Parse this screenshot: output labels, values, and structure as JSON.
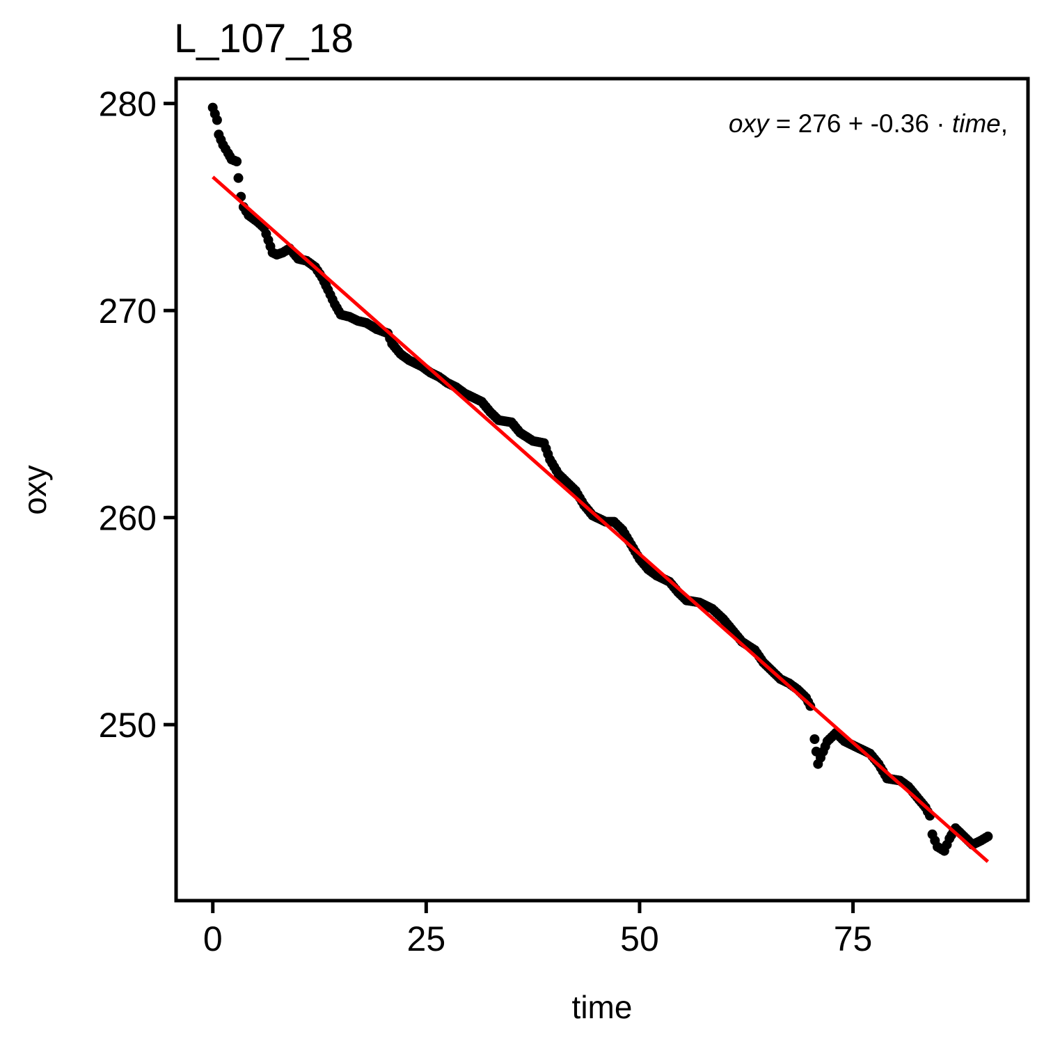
{
  "chart_data": {
    "type": "scatter",
    "title": "L_107_18",
    "xlabel": "time",
    "ylabel": "oxy",
    "xlim": [
      -4.3,
      95.5
    ],
    "ylim": [
      241.5,
      281.2
    ],
    "xticks": [
      0,
      25,
      50,
      75
    ],
    "yticks": [
      250,
      260,
      270,
      280
    ],
    "xtick_labels": [
      "0",
      "25",
      "50",
      "75"
    ],
    "ytick_labels": [
      "250",
      "260",
      "270",
      "280"
    ],
    "grid": false,
    "legend": "none",
    "point_color": "#000000",
    "fit_color": "#ff0000",
    "annotation": {
      "position": "top-right",
      "lhs": "oxy",
      "eq": "=",
      "intercept": "276",
      "plus": "+",
      "slope": "-0.36",
      "dot": "·",
      "var": "time",
      "comma": ","
    },
    "fit": {
      "intercept": 276.45,
      "slope": -0.3642,
      "x_range": [
        0,
        90.8
      ]
    },
    "anchors": [
      [
        0,
        279.8
      ],
      [
        0.5,
        279.2
      ],
      [
        0.7,
        278.5
      ],
      [
        1.2,
        278.0
      ],
      [
        1.8,
        277.6
      ],
      [
        2.2,
        277.3
      ],
      [
        2.8,
        277.2
      ],
      [
        3.0,
        276.4
      ],
      [
        3.3,
        275.5
      ],
      [
        3.6,
        275.0
      ],
      [
        4.2,
        274.6
      ],
      [
        5.2,
        274.3
      ],
      [
        6.0,
        274.0
      ],
      [
        6.5,
        273.4
      ],
      [
        7.0,
        272.8
      ],
      [
        7.5,
        272.7
      ],
      [
        8.2,
        272.8
      ],
      [
        9.0,
        273.0
      ],
      [
        10.0,
        272.5
      ],
      [
        11.0,
        272.4
      ],
      [
        12.0,
        272.1
      ],
      [
        12.8,
        271.6
      ],
      [
        13.5,
        271.0
      ],
      [
        14.3,
        270.3
      ],
      [
        15.0,
        269.8
      ],
      [
        16.0,
        269.7
      ],
      [
        17.0,
        269.5
      ],
      [
        18.0,
        269.4
      ],
      [
        19.2,
        269.1
      ],
      [
        20.5,
        268.9
      ],
      [
        21.0,
        268.4
      ],
      [
        22.0,
        267.9
      ],
      [
        23.0,
        267.6
      ],
      [
        24.5,
        267.3
      ],
      [
        25.5,
        267.0
      ],
      [
        26.5,
        266.8
      ],
      [
        27.5,
        266.5
      ],
      [
        28.5,
        266.3
      ],
      [
        29.5,
        266.0
      ],
      [
        30.5,
        265.8
      ],
      [
        31.5,
        265.6
      ],
      [
        32.5,
        265.1
      ],
      [
        33.5,
        264.7
      ],
      [
        35.0,
        264.6
      ],
      [
        36.0,
        264.1
      ],
      [
        37.5,
        263.7
      ],
      [
        38.8,
        263.6
      ],
      [
        39.5,
        262.8
      ],
      [
        40.5,
        262.1
      ],
      [
        41.5,
        261.7
      ],
      [
        42.5,
        261.3
      ],
      [
        43.5,
        260.6
      ],
      [
        44.5,
        260.1
      ],
      [
        46.0,
        259.8
      ],
      [
        47.0,
        259.8
      ],
      [
        48.0,
        259.4
      ],
      [
        49.0,
        258.7
      ],
      [
        50.0,
        258.0
      ],
      [
        51.0,
        257.5
      ],
      [
        52.0,
        257.2
      ],
      [
        53.5,
        256.9
      ],
      [
        54.5,
        256.4
      ],
      [
        55.5,
        256.0
      ],
      [
        57.0,
        255.9
      ],
      [
        58.5,
        255.6
      ],
      [
        59.8,
        255.1
      ],
      [
        61.0,
        254.5
      ],
      [
        62.0,
        254.0
      ],
      [
        63.5,
        253.6
      ],
      [
        64.5,
        253.0
      ],
      [
        65.5,
        252.6
      ],
      [
        66.5,
        252.2
      ],
      [
        67.5,
        252.0
      ],
      [
        68.5,
        251.7
      ],
      [
        69.5,
        251.3
      ],
      [
        70.0,
        250.9
      ]
    ],
    "gap_anchors": [
      [
        70.5,
        249.3
      ],
      [
        70.9,
        248.1
      ],
      [
        71.5,
        248.7
      ],
      [
        72.0,
        249.2
      ],
      [
        73.0,
        249.6
      ],
      [
        74.0,
        249.2
      ],
      [
        75.0,
        249.0
      ],
      [
        76.0,
        248.8
      ],
      [
        77.0,
        248.6
      ],
      [
        78.0,
        248.1
      ],
      [
        79.0,
        247.4
      ],
      [
        80.5,
        247.3
      ],
      [
        81.5,
        247.0
      ],
      [
        82.5,
        246.5
      ],
      [
        83.5,
        246.0
      ],
      [
        84.0,
        245.6
      ],
      [
        84.3,
        244.7
      ],
      [
        84.9,
        244.1
      ],
      [
        85.7,
        243.9
      ],
      [
        86.3,
        244.5
      ],
      [
        87.0,
        245.0
      ],
      [
        88.0,
        244.6
      ],
      [
        89.0,
        244.2
      ],
      [
        90.0,
        244.4
      ],
      [
        90.8,
        244.6
      ]
    ]
  }
}
